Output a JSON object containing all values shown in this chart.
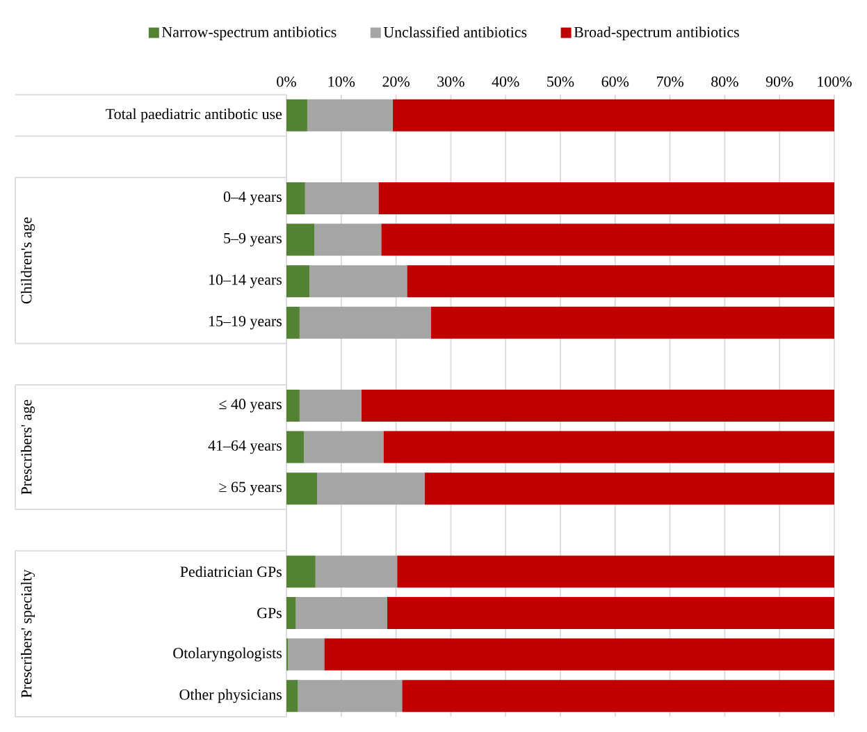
{
  "chart_data": {
    "type": "bar",
    "orientation": "horizontal",
    "stacked": true,
    "categories": [
      "Total paediatric antibotic use",
      null,
      "0–4 years",
      "5–9 years",
      "10–14 years",
      "15–19 years",
      null,
      "≤ 40 years",
      "41–64  years",
      "≥ 65 years",
      null,
      "Pediatrician GPs",
      "GPs",
      "Otolaryngologists",
      "Other physicians"
    ],
    "series": [
      {
        "name": "Narrow-spectrum antibiotics",
        "color": "#548235",
        "values": [
          3.8,
          null,
          3.4,
          5.1,
          4.2,
          2.4,
          null,
          2.4,
          3.2,
          5.6,
          null,
          5.3,
          1.7,
          0.3,
          2.1
        ]
      },
      {
        "name": "Unclassified antibiotics",
        "color": "#a5a5a5",
        "values": [
          15.6,
          null,
          13.4,
          12.2,
          17.8,
          24.0,
          null,
          11.3,
          14.5,
          19.6,
          null,
          14.9,
          16.7,
          6.6,
          19.0
        ]
      },
      {
        "name": "Broad-spectrum antibiotics",
        "color": "#c00000",
        "values": [
          80.6,
          null,
          83.2,
          82.7,
          78.0,
          73.6,
          null,
          86.3,
          82.3,
          74.8,
          null,
          79.8,
          81.6,
          93.1,
          78.9
        ]
      }
    ],
    "xlim": [
      0,
      100
    ],
    "xticks": [
      {
        "value": 0,
        "label": "0%"
      },
      {
        "value": 10,
        "label": "10%"
      },
      {
        "value": 20,
        "label": "20%"
      },
      {
        "value": 30,
        "label": "30%"
      },
      {
        "value": 40,
        "label": "40%"
      },
      {
        "value": 50,
        "label": "50%"
      },
      {
        "value": 60,
        "label": "60%"
      },
      {
        "value": 70,
        "label": "70%"
      },
      {
        "value": 80,
        "label": "80%"
      },
      {
        "value": 90,
        "label": "90%"
      },
      {
        "value": 100,
        "label": "100%"
      }
    ],
    "annotations": [
      "Children's age",
      "Prescribers' age",
      "Prescribers' specialty"
    ],
    "grid": "x",
    "legend": "top"
  }
}
